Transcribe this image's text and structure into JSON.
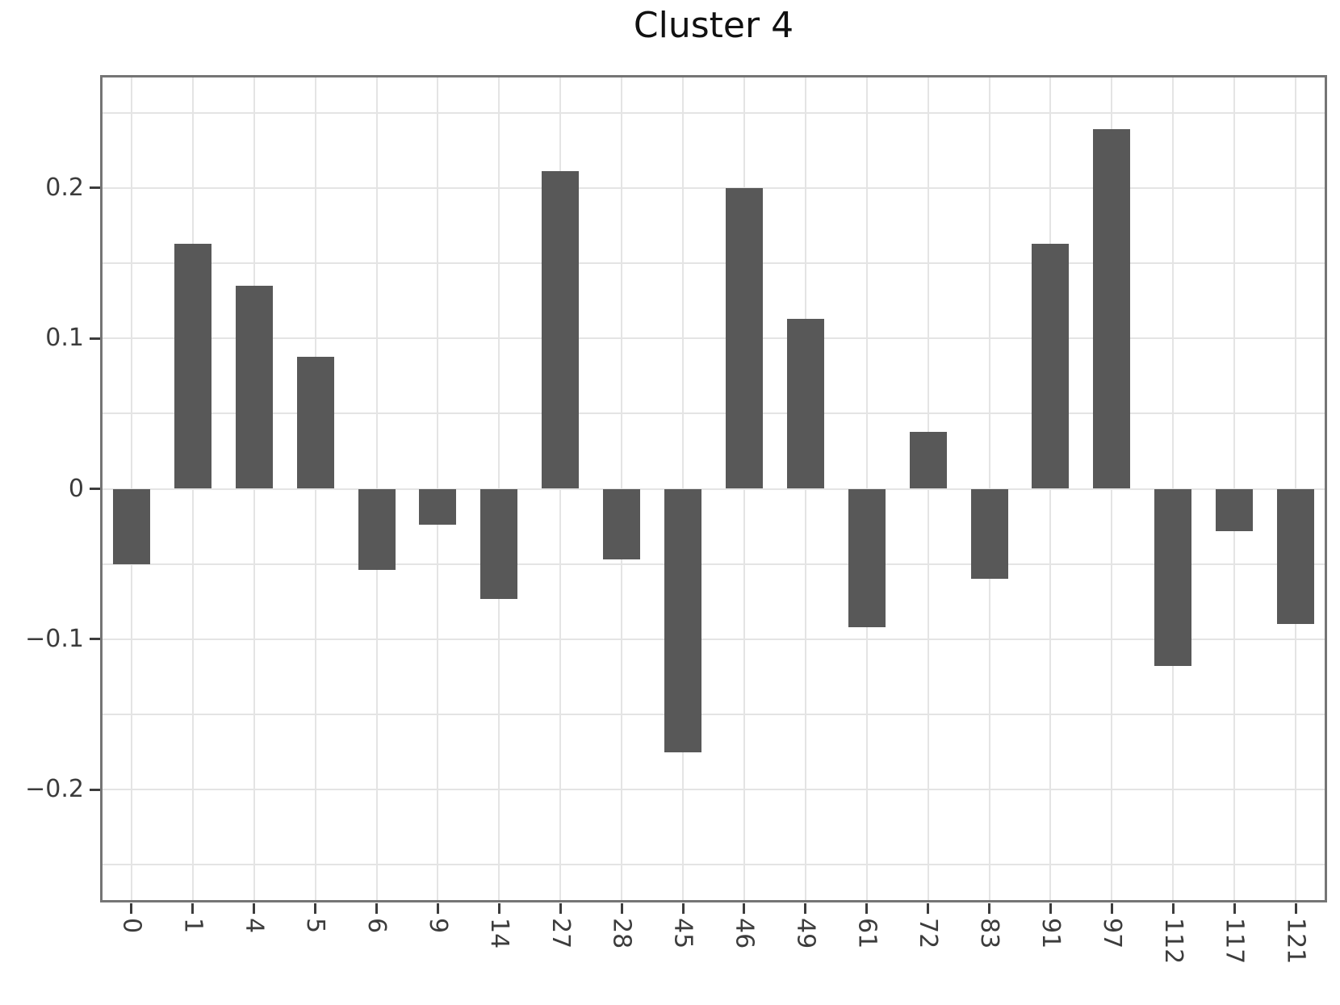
{
  "chart_data": {
    "type": "bar",
    "title": "Cluster 4",
    "categories": [
      "0",
      "1",
      "4",
      "5",
      "6",
      "9",
      "14",
      "27",
      "28",
      "45",
      "46",
      "49",
      "61",
      "72",
      "83",
      "91",
      "97",
      "112",
      "117",
      "121"
    ],
    "values": [
      -0.05,
      0.163,
      0.135,
      0.088,
      -0.054,
      -0.024,
      -0.073,
      0.211,
      -0.047,
      -0.175,
      0.2,
      0.113,
      -0.092,
      0.038,
      -0.06,
      0.163,
      0.239,
      -0.118,
      -0.028,
      -0.09
    ],
    "xlabel": "",
    "ylabel": "",
    "ylim": [
      -0.2745,
      0.2745
    ],
    "yticks": [
      -0.2,
      -0.1,
      0,
      0.1,
      0.2
    ],
    "ytick_labels": [
      "−0.2",
      "−0.1",
      "0",
      "0.1",
      "0.2"
    ],
    "minor_grid_step": 0.05,
    "grid_range": [
      -0.25,
      0.25
    ],
    "grid": true,
    "legend": "none",
    "colors": {
      "bar": "#585858",
      "grid": "#e4e4e4",
      "spine": "#757575",
      "tick": "#3c3c3c",
      "tick_label": "#3c3c3c",
      "title": "#111111",
      "background": "#ffffff"
    }
  }
}
